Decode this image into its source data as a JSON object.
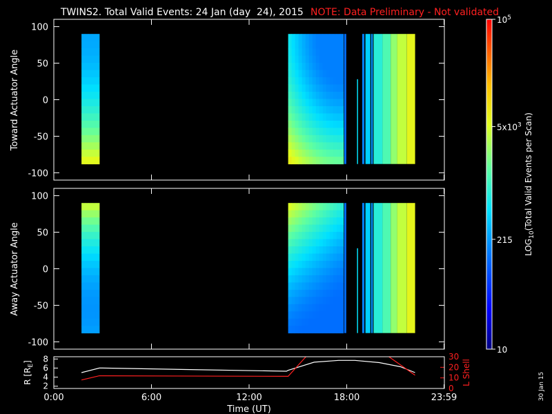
{
  "header": {
    "title": "TWINS2. Total Valid Events: 24 Jan (day  24), 2015",
    "note": "NOTE: Data Preliminary - Not validated"
  },
  "colors": {
    "background": "#000000",
    "foreground": "#ffffff",
    "note": "#ff2020",
    "r_line": "#ffffff",
    "lshell_line": "#ff2020"
  },
  "stamp": "30 Jan 15",
  "chart_data": [
    {
      "type": "heatmap",
      "panel": "top",
      "ylabel": "Toward Actuator Angle",
      "ylim": [
        -110,
        110
      ],
      "yticks": [
        "100",
        "50",
        "0",
        "-50",
        "-100"
      ],
      "xlim_hours": [
        0,
        24
      ],
      "angle_range": [
        -88,
        90
      ],
      "colorscale": "log10",
      "blocks": [
        {
          "start_h": 1.7,
          "end_h": 2.8,
          "pattern": "low_then_high",
          "low": 2.4,
          "high": 3.75
        },
        {
          "start_h": 14.4,
          "end_h": 17.8,
          "pattern": "corner_high",
          "low": 2.2,
          "high": 3.8
        },
        {
          "start_h": 17.85,
          "end_h": 17.97,
          "value": 2.1
        },
        {
          "start_h": 18.63,
          "end_h": 18.69,
          "value": 2.7,
          "angle_top": 28
        },
        {
          "start_h": 18.95,
          "end_h": 19.08,
          "value": 2.2
        },
        {
          "start_h": 19.15,
          "end_h": 19.45,
          "value": 2.6
        },
        {
          "start_h": 19.5,
          "end_h": 19.6,
          "value": 2.3
        },
        {
          "start_h": 19.65,
          "end_h": 20.2,
          "value": 2.9
        },
        {
          "start_h": 20.2,
          "end_h": 20.7,
          "value": 3.1
        },
        {
          "start_h": 20.7,
          "end_h": 21.1,
          "value": 3.4
        },
        {
          "start_h": 21.1,
          "end_h": 21.7,
          "value": 3.6
        },
        {
          "start_h": 21.7,
          "end_h": 22.2,
          "value": 3.8
        }
      ]
    },
    {
      "type": "heatmap",
      "panel": "middle",
      "ylabel": "Away Actuator Angle",
      "ylim": [
        -110,
        110
      ],
      "yticks": [
        "100",
        "50",
        "0",
        "-50",
        "-100"
      ],
      "xlim_hours": [
        0,
        24
      ],
      "angle_range": [
        -88,
        90
      ],
      "colorscale": "log10",
      "blocks": [
        {
          "start_h": 1.7,
          "end_h": 2.8,
          "pattern": "high_then_low",
          "low": 2.2,
          "high": 3.6
        },
        {
          "start_h": 14.4,
          "end_h": 17.8,
          "pattern": "top_high",
          "low": 2.1,
          "high": 3.7
        },
        {
          "start_h": 17.85,
          "end_h": 17.97,
          "value": 2.1
        },
        {
          "start_h": 18.63,
          "end_h": 18.69,
          "value": 2.7,
          "angle_top": 28
        },
        {
          "start_h": 18.95,
          "end_h": 19.08,
          "value": 2.2
        },
        {
          "start_h": 19.15,
          "end_h": 19.45,
          "value": 2.6
        },
        {
          "start_h": 19.5,
          "end_h": 19.6,
          "value": 2.3
        },
        {
          "start_h": 19.65,
          "end_h": 20.2,
          "value": 2.9
        },
        {
          "start_h": 20.2,
          "end_h": 20.7,
          "value": 3.1
        },
        {
          "start_h": 20.7,
          "end_h": 21.1,
          "value": 3.4
        },
        {
          "start_h": 21.1,
          "end_h": 21.7,
          "value": 3.6
        },
        {
          "start_h": 21.7,
          "end_h": 22.2,
          "value": 3.8
        }
      ]
    },
    {
      "type": "line",
      "panel": "bottom",
      "xlabel": "Time (UT)",
      "xticks": [
        "0:00",
        "6:00",
        "12:00",
        "18:00",
        "23:59"
      ],
      "xtick_hours": [
        0,
        6,
        12,
        18,
        23.98
      ],
      "ylabel_left": "R [RE]",
      "ylabel_left_main": "R [R",
      "ylabel_left_sub": "E",
      "ylabel_left_close": "]",
      "yticks_left": [
        "8",
        "6",
        "4",
        "2"
      ],
      "ylim_left": [
        1.5,
        8.5
      ],
      "ylabel_right": "L Shell",
      "yticks_right": [
        "30",
        "20",
        "10",
        "0"
      ],
      "ylim_right": [
        0,
        30
      ],
      "series": [
        {
          "name": "R",
          "axis": "left",
          "x": [
            1.7,
            2.8,
            3.0,
            14.3,
            14.4,
            16.0,
            17.5,
            18.5,
            20.0,
            21.3,
            22.2
          ],
          "values": [
            5.0,
            6.0,
            6.0,
            5.3,
            5.5,
            7.3,
            7.7,
            7.7,
            7.2,
            6.3,
            5.0
          ]
        },
        {
          "name": "L Shell",
          "axis": "right",
          "x": [
            1.7,
            2.8,
            3.0,
            14.3,
            14.4,
            15.55,
            20.5,
            22.2
          ],
          "values": [
            8.0,
            12.0,
            12.0,
            11.5,
            11.5,
            31.0,
            31.0,
            12.5
          ]
        }
      ]
    },
    {
      "type": "heatmap",
      "panel": "colorbar",
      "label": "LOG10(Total Valid Events per Scan)",
      "label_main": "LOG",
      "label_sub": "10",
      "label_rest": "(Total Valid Events per Scan)",
      "range_log10": [
        1,
        5
      ],
      "ticks": [
        {
          "log10": 5,
          "text": "10",
          "sup": "5"
        },
        {
          "log10": 3.699,
          "text": "5x10",
          "sup": "3"
        },
        {
          "log10": 2.332,
          "text": "215",
          "sup": ""
        },
        {
          "log10": 1,
          "text": "10",
          "sup": ""
        }
      ]
    }
  ]
}
